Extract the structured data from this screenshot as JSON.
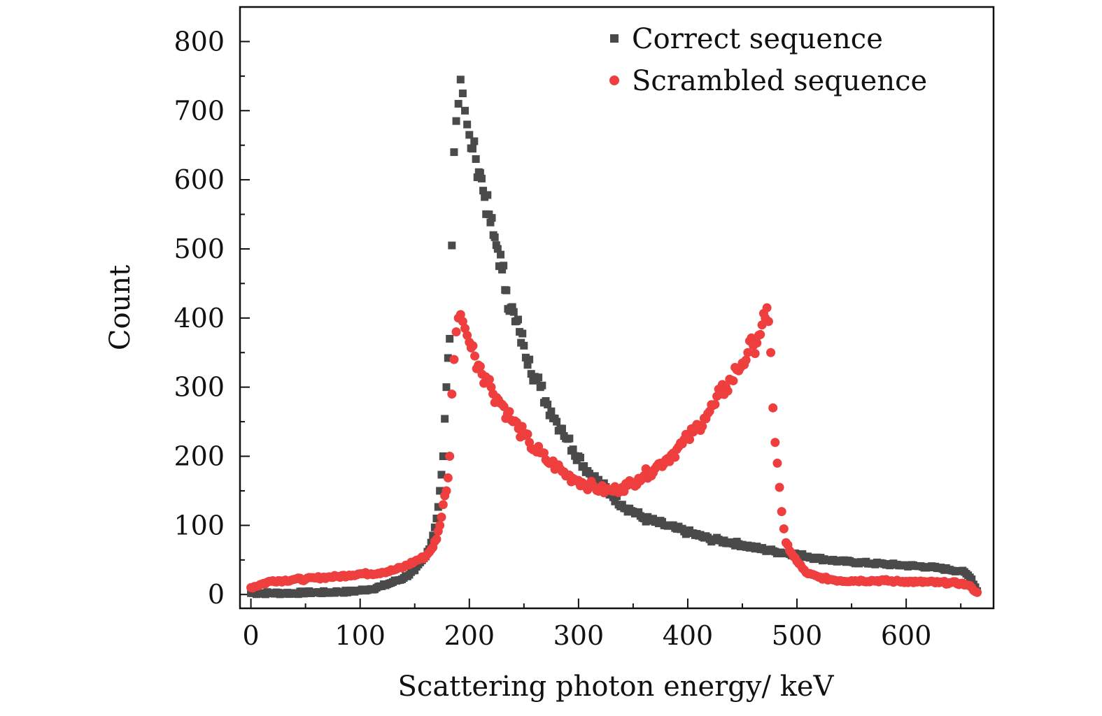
{
  "chart_data": {
    "type": "scatter",
    "title": "",
    "xlabel": "Scattering photon energy/ keV",
    "ylabel": "Count",
    "xlim": [
      -10,
      680
    ],
    "ylim": [
      -20,
      850
    ],
    "x_ticks": [
      0,
      100,
      200,
      300,
      400,
      500,
      600
    ],
    "y_ticks": [
      0,
      100,
      200,
      300,
      400,
      500,
      600,
      700,
      800
    ],
    "x_tick_labels": [
      "0",
      "100",
      "200",
      "300",
      "400",
      "500",
      "600"
    ],
    "y_tick_labels": [
      "0",
      "100",
      "200",
      "300",
      "400",
      "500",
      "600",
      "700",
      "800"
    ],
    "grid": false,
    "legend_position": "top-right",
    "series": [
      {
        "name": "Correct sequence",
        "marker": "square",
        "color": "#4a4a4a",
        "x": [
          0,
          10,
          20,
          30,
          40,
          50,
          60,
          70,
          80,
          90,
          100,
          110,
          120,
          130,
          140,
          150,
          160,
          165,
          170,
          173,
          176,
          179,
          182,
          184,
          186,
          188,
          190,
          192,
          194,
          196,
          198,
          200,
          203,
          206,
          210,
          214,
          218,
          222,
          226,
          230,
          234,
          238,
          242,
          246,
          250,
          255,
          260,
          265,
          270,
          275,
          280,
          285,
          290,
          295,
          300,
          310,
          320,
          330,
          340,
          350,
          360,
          370,
          380,
          390,
          400,
          410,
          420,
          430,
          440,
          450,
          460,
          470,
          480,
          490,
          500,
          510,
          520,
          530,
          540,
          550,
          560,
          570,
          580,
          590,
          600,
          610,
          620,
          630,
          640,
          650,
          655,
          660,
          665
        ],
        "y": [
          2,
          2,
          2,
          2,
          2,
          3,
          3,
          3,
          4,
          4,
          6,
          8,
          12,
          18,
          24,
          35,
          55,
          75,
          110,
          150,
          200,
          300,
          370,
          505,
          640,
          685,
          710,
          745,
          725,
          700,
          680,
          665,
          645,
          630,
          610,
          575,
          550,
          520,
          500,
          470,
          440,
          415,
          395,
          380,
          360,
          340,
          315,
          300,
          280,
          265,
          250,
          240,
          225,
          210,
          200,
          175,
          160,
          145,
          130,
          120,
          110,
          105,
          100,
          95,
          90,
          85,
          80,
          78,
          75,
          72,
          68,
          65,
          62,
          60,
          58,
          55,
          52,
          50,
          48,
          47,
          46,
          45,
          44,
          43,
          42,
          41,
          40,
          38,
          36,
          34,
          30,
          22,
          5
        ]
      },
      {
        "name": "Scrambled sequence",
        "marker": "circle",
        "color": "#ee3e3e",
        "x": [
          0,
          10,
          20,
          30,
          40,
          50,
          60,
          70,
          80,
          90,
          100,
          110,
          120,
          130,
          140,
          150,
          160,
          165,
          170,
          173,
          176,
          179,
          182,
          184,
          186,
          188,
          190,
          192,
          194,
          196,
          198,
          200,
          205,
          210,
          215,
          220,
          225,
          230,
          235,
          240,
          245,
          250,
          255,
          260,
          265,
          270,
          275,
          280,
          285,
          290,
          295,
          300,
          305,
          310,
          315,
          320,
          325,
          330,
          335,
          340,
          345,
          350,
          355,
          360,
          365,
          370,
          375,
          380,
          385,
          390,
          395,
          400,
          405,
          410,
          415,
          420,
          425,
          430,
          435,
          440,
          445,
          450,
          455,
          460,
          465,
          468,
          471,
          474,
          476,
          478,
          480,
          482,
          484,
          486,
          488,
          490,
          495,
          500,
          505,
          510,
          520,
          530,
          540,
          550,
          560,
          570,
          580,
          590,
          600,
          610,
          620,
          630,
          640,
          650,
          655,
          660,
          665
        ],
        "y": [
          10,
          15,
          20,
          20,
          22,
          22,
          24,
          25,
          26,
          28,
          30,
          30,
          32,
          35,
          40,
          48,
          55,
          65,
          80,
          100,
          130,
          150,
          200,
          290,
          340,
          380,
          400,
          405,
          395,
          385,
          375,
          365,
          345,
          330,
          315,
          300,
          285,
          275,
          262,
          250,
          240,
          230,
          220,
          210,
          205,
          195,
          190,
          185,
          178,
          172,
          168,
          165,
          160,
          158,
          155,
          152,
          150,
          150,
          152,
          155,
          158,
          162,
          168,
          172,
          178,
          182,
          190,
          195,
          202,
          210,
          218,
          225,
          235,
          245,
          255,
          265,
          275,
          290,
          300,
          310,
          325,
          335,
          350,
          360,
          375,
          390,
          400,
          395,
          350,
          270,
          220,
          190,
          155,
          120,
          95,
          75,
          60,
          48,
          38,
          30,
          25,
          22,
          20,
          20,
          20,
          20,
          20,
          19,
          19,
          18,
          18,
          17,
          17,
          16,
          14,
          10,
          3
        ]
      }
    ]
  }
}
